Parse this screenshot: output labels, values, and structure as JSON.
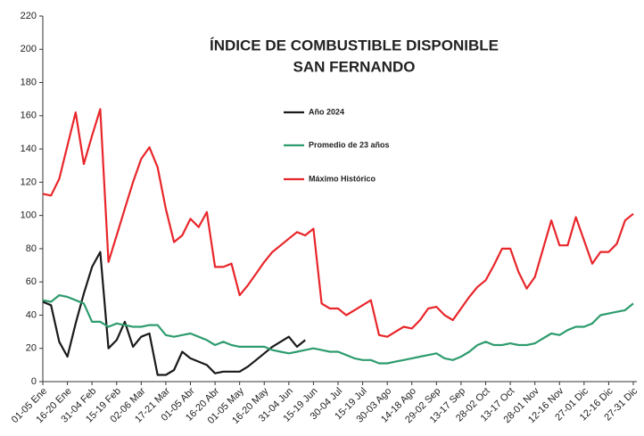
{
  "chart_data": {
    "type": "line",
    "title": [
      "ÍNDICE DE COMBUSTIBLE DISPONIBLE",
      "SAN FERNANDO"
    ],
    "categories": [
      "01-05 Ene",
      null,
      null,
      "16-20 Ene",
      null,
      null,
      "31-04 Feb",
      null,
      null,
      "15-19 Feb",
      null,
      null,
      "02-06 Mar",
      null,
      null,
      "17-21 Mar",
      null,
      null,
      "01-05 Abr",
      null,
      null,
      "16-20 Abr",
      null,
      null,
      "01-05 May",
      null,
      null,
      "16-20 May",
      null,
      null,
      "31-04 Jun",
      null,
      null,
      "15-19 Jun",
      null,
      null,
      "30-04 Jul",
      null,
      null,
      "15-19 Jul",
      null,
      null,
      "30-03 Ago",
      null,
      null,
      "14-18 Ago",
      null,
      null,
      "29-02 Sep",
      null,
      null,
      "13-17 Sep",
      null,
      null,
      "28-02 Oct",
      null,
      null,
      "13-17 Oct",
      null,
      null,
      "28-01 Nov",
      null,
      null,
      "12-16 Nov",
      null,
      null,
      "27-01 Dic",
      null,
      null,
      "12-16 Dic",
      null,
      null,
      "27-31 Dic"
    ],
    "series": [
      {
        "name": "Año 2024",
        "color": "#1a1a1a",
        "values": [
          48,
          46,
          24,
          15,
          35,
          53,
          69,
          78,
          20,
          25,
          36,
          21,
          27,
          29,
          4,
          4,
          7,
          18,
          14,
          12,
          10,
          5,
          6,
          6,
          6,
          9,
          13,
          17,
          21,
          24,
          27,
          21,
          25,
          null,
          null,
          null,
          null,
          null,
          null,
          null,
          null,
          null,
          null,
          null,
          null,
          null,
          null,
          null,
          null,
          null,
          null,
          null,
          null,
          null,
          null,
          null,
          null,
          null,
          null,
          null,
          null,
          null,
          null,
          null,
          null,
          null,
          null,
          null,
          null,
          null,
          null,
          null,
          null
        ]
      },
      {
        "name": "Promedio de 23 años",
        "color": "#2e9c6e",
        "values": [
          49,
          48,
          52,
          51,
          49,
          47,
          36,
          36,
          33,
          35,
          34,
          33,
          33,
          34,
          34,
          28,
          27,
          28,
          29,
          27,
          25,
          22,
          24,
          22,
          21,
          21,
          21,
          21,
          19,
          18,
          17,
          18,
          19,
          20,
          19,
          18,
          18,
          16,
          14,
          13,
          13,
          11,
          11,
          12,
          13,
          14,
          15,
          16,
          17,
          14,
          13,
          15,
          18,
          22,
          24,
          22,
          22,
          23,
          22,
          22,
          23,
          26,
          29,
          28,
          31,
          33,
          33,
          35,
          40,
          41,
          42,
          43,
          47
        ]
      },
      {
        "name": "Máximo Histórico",
        "color": "#e8262a",
        "values": [
          113,
          112,
          122,
          142,
          162,
          131,
          148,
          164,
          72,
          88,
          104,
          120,
          134,
          141,
          129,
          104,
          84,
          88,
          98,
          93,
          102,
          69,
          69,
          71,
          52,
          58,
          65,
          72,
          78,
          82,
          86,
          90,
          88,
          92,
          47,
          44,
          44,
          40,
          43,
          46,
          49,
          28,
          27,
          30,
          33,
          32,
          37,
          44,
          45,
          40,
          37,
          44,
          51,
          57,
          61,
          70,
          80,
          80,
          66,
          56,
          63,
          80,
          97,
          82,
          82,
          99,
          85,
          71,
          78,
          78,
          83,
          97,
          101
        ]
      }
    ],
    "ylim": [
      0,
      220
    ],
    "yticks": [
      0,
      20,
      40,
      60,
      80,
      100,
      120,
      140,
      160,
      180,
      200,
      220
    ],
    "grid": false
  }
}
